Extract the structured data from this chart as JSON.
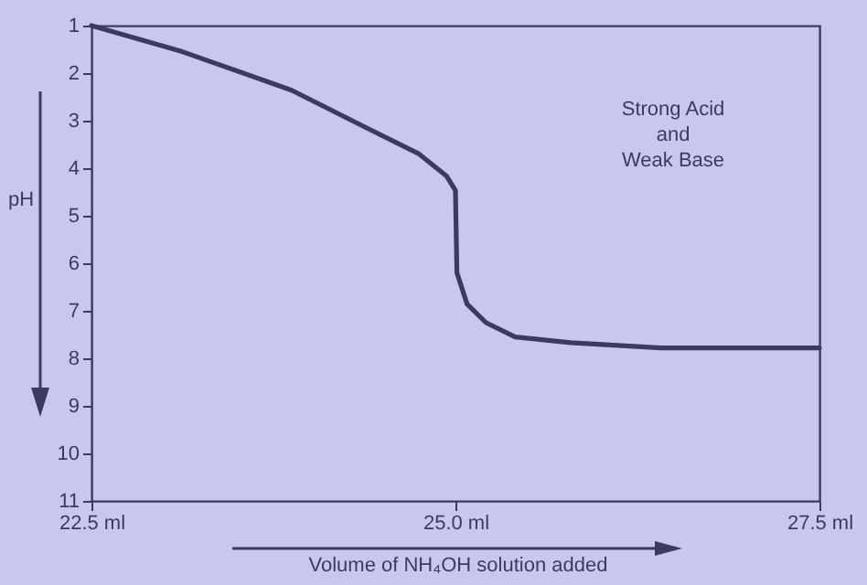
{
  "chart_data": {
    "type": "line",
    "xlabel": "Volume of NH₄OH solution added",
    "ylabel": "pH",
    "annotations": [
      "Strong Acid\nand\nWeak Base"
    ],
    "xlim": [
      22.5,
      27.5
    ],
    "xticks": [
      {
        "value": 22.5,
        "label": "22.5 ml"
      },
      {
        "value": 25.0,
        "label": "25.0 ml"
      },
      {
        "value": 27.5,
        "label": "27.5 ml"
      }
    ],
    "ylim": [
      11,
      1
    ],
    "yticks": [
      1,
      2,
      3,
      4,
      5,
      6,
      7,
      8,
      9,
      10,
      11
    ],
    "grid": false,
    "marker": "none",
    "line_style": "solid",
    "series": [
      {
        "color": "#3a3a62",
        "x": [
          22.5,
          23.125,
          23.875,
          24.375,
          24.75,
          24.94,
          25.0,
          25.01,
          25.08,
          25.21,
          25.41,
          25.79,
          26.41,
          27.5
        ],
        "values": [
          1,
          1.55,
          2.36,
          3.13,
          3.7,
          4.17,
          4.47,
          6.2,
          6.86,
          7.25,
          7.55,
          7.67,
          7.78,
          7.78
        ]
      }
    ]
  }
}
